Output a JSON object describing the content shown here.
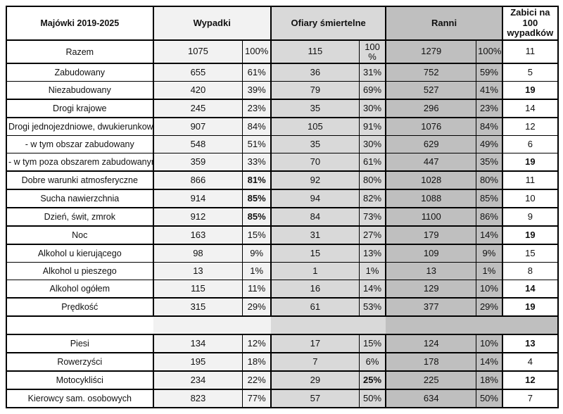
{
  "colors": {
    "wypadki_column_bg": "#f2f2f2",
    "ofiary_column_bg": "#d9d9d9",
    "ranni_column_bg": "#bfbfbf",
    "border": "#000000",
    "text": "#111111"
  },
  "table": {
    "header": {
      "title": "Majówki 2019-2025",
      "wypadki": "Wypadki",
      "ofiary": "Ofiary śmiertelne",
      "ranni": "Ranni",
      "zabici": "Zabici na 100 wypadków"
    },
    "rows": [
      {
        "label": "Razem",
        "cells": [
          "1075",
          "100%",
          "115",
          "100 %",
          "1279",
          "100%",
          "11"
        ],
        "bold": [],
        "top": "thick",
        "tall": true
      },
      {
        "label": "Zabudowany",
        "cells": [
          "655",
          "61%",
          "36",
          "31%",
          "752",
          "59%",
          "5"
        ],
        "bold": [],
        "top": "thick"
      },
      {
        "label": "Niezabudowany",
        "cells": [
          "420",
          "39%",
          "79",
          "69%",
          "527",
          "41%",
          "19"
        ],
        "bold": [
          7
        ],
        "top": "thin"
      },
      {
        "label": "Drogi krajowe",
        "cells": [
          "245",
          "23%",
          "35",
          "30%",
          "296",
          "23%",
          "14"
        ],
        "bold": [],
        "top": "thick"
      },
      {
        "label": "Drogi jednojezdniowe, dwukierunkowe",
        "cells": [
          "907",
          "84%",
          "105",
          "91%",
          "1076",
          "84%",
          "12"
        ],
        "bold": [],
        "top": "thick"
      },
      {
        "label": "- w tym obszar zabudowany",
        "cells": [
          "548",
          "51%",
          "35",
          "30%",
          "629",
          "49%",
          "6"
        ],
        "bold": [],
        "top": "thin"
      },
      {
        "label": "- w tym poza obszarem zabudowanym",
        "cells": [
          "359",
          "33%",
          "70",
          "61%",
          "447",
          "35%",
          "19"
        ],
        "bold": [
          7
        ],
        "top": "thin"
      },
      {
        "label": "Dobre warunki atmosferyczne",
        "cells": [
          "866",
          "81%",
          "92",
          "80%",
          "1028",
          "80%",
          "11"
        ],
        "bold": [
          2
        ],
        "top": "thick"
      },
      {
        "label": "Sucha nawierzchnia",
        "cells": [
          "914",
          "85%",
          "94",
          "82%",
          "1088",
          "85%",
          "10"
        ],
        "bold": [
          2
        ],
        "top": "thick"
      },
      {
        "label": "Dzień, świt, zmrok",
        "cells": [
          "912",
          "85%",
          "84",
          "73%",
          "1100",
          "86%",
          "9"
        ],
        "bold": [
          2
        ],
        "top": "thick"
      },
      {
        "label": "Noc",
        "cells": [
          "163",
          "15%",
          "31",
          "27%",
          "179",
          "14%",
          "19"
        ],
        "bold": [
          7
        ],
        "top": "thick"
      },
      {
        "label": "Alkohol u kierującego",
        "cells": [
          "98",
          "9%",
          "15",
          "13%",
          "109",
          "9%",
          "15"
        ],
        "bold": [],
        "top": "thick"
      },
      {
        "label": "Alkohol u pieszego",
        "cells": [
          "13",
          "1%",
          "1",
          "1%",
          "13",
          "1%",
          "8"
        ],
        "bold": [],
        "top": "thin"
      },
      {
        "label": "Alkohol ogółem",
        "cells": [
          "115",
          "11%",
          "16",
          "14%",
          "129",
          "10%",
          "14"
        ],
        "bold": [
          7
        ],
        "top": "thin"
      },
      {
        "label": "Prędkość",
        "cells": [
          "315",
          "29%",
          "61",
          "53%",
          "377",
          "29%",
          "19"
        ],
        "bold": [
          7
        ],
        "top": "thick"
      },
      {
        "type": "spacer",
        "top": "thick"
      },
      {
        "label": "Piesi",
        "cells": [
          "134",
          "12%",
          "17",
          "15%",
          "124",
          "10%",
          "13"
        ],
        "bold": [
          7
        ],
        "top": "thick"
      },
      {
        "label": "Rowerzyści",
        "cells": [
          "195",
          "18%",
          "7",
          "6%",
          "178",
          "14%",
          "4"
        ],
        "bold": [],
        "top": "thick"
      },
      {
        "label": "Motocykliści",
        "cells": [
          "234",
          "22%",
          "29",
          "25%",
          "225",
          "18%",
          "12"
        ],
        "bold": [
          4,
          7
        ],
        "top": "thick"
      },
      {
        "label": "Kierowcy sam. osobowych",
        "cells": [
          "823",
          "77%",
          "57",
          "50%",
          "634",
          "50%",
          "7"
        ],
        "bold": [],
        "top": "thick"
      }
    ]
  },
  "chart_data": {
    "type": "table",
    "title": "Majówki 2019-2025",
    "columns": [
      "Majówki 2019-2025",
      "Wypadki",
      "Wypadki %",
      "Ofiary śmiertelne",
      "Ofiary śmiertelne %",
      "Ranni",
      "Ranni %",
      "Zabici na 100 wypadków"
    ],
    "rows": [
      [
        "Razem",
        1075,
        "100%",
        115,
        "100%",
        1279,
        "100%",
        11
      ],
      [
        "Zabudowany",
        655,
        "61%",
        36,
        "31%",
        752,
        "59%",
        5
      ],
      [
        "Niezabudowany",
        420,
        "39%",
        79,
        "69%",
        527,
        "41%",
        19
      ],
      [
        "Drogi krajowe",
        245,
        "23%",
        35,
        "30%",
        296,
        "23%",
        14
      ],
      [
        "Drogi jednojezdniowe, dwukierunkowe",
        907,
        "84%",
        105,
        "91%",
        1076,
        "84%",
        12
      ],
      [
        "- w tym obszar zabudowany",
        548,
        "51%",
        35,
        "30%",
        629,
        "49%",
        6
      ],
      [
        "- w tym poza obszarem zabudowanym",
        359,
        "33%",
        70,
        "61%",
        447,
        "35%",
        19
      ],
      [
        "Dobre warunki atmosferyczne",
        866,
        "81%",
        92,
        "80%",
        1028,
        "80%",
        11
      ],
      [
        "Sucha nawierzchnia",
        914,
        "85%",
        94,
        "82%",
        1088,
        "85%",
        10
      ],
      [
        "Dzień, świt, zmrok",
        912,
        "85%",
        84,
        "73%",
        1100,
        "86%",
        9
      ],
      [
        "Noc",
        163,
        "15%",
        31,
        "27%",
        179,
        "14%",
        19
      ],
      [
        "Alkohol u kierującego",
        98,
        "9%",
        15,
        "13%",
        109,
        "9%",
        15
      ],
      [
        "Alkohol u pieszego",
        13,
        "1%",
        1,
        "1%",
        13,
        "1%",
        8
      ],
      [
        "Alkohol ogółem",
        115,
        "11%",
        16,
        "14%",
        129,
        "10%",
        14
      ],
      [
        "Prędkość",
        315,
        "29%",
        61,
        "53%",
        377,
        "29%",
        19
      ],
      [
        "Piesi",
        134,
        "12%",
        17,
        "15%",
        124,
        "10%",
        13
      ],
      [
        "Rowerzyści",
        195,
        "18%",
        7,
        "6%",
        178,
        "14%",
        4
      ],
      [
        "Motocykliści",
        234,
        "22%",
        29,
        "25%",
        225,
        "18%",
        12
      ],
      [
        "Kierowcy sam. osobowych",
        823,
        "77%",
        57,
        "50%",
        634,
        "50%",
        7
      ]
    ]
  }
}
